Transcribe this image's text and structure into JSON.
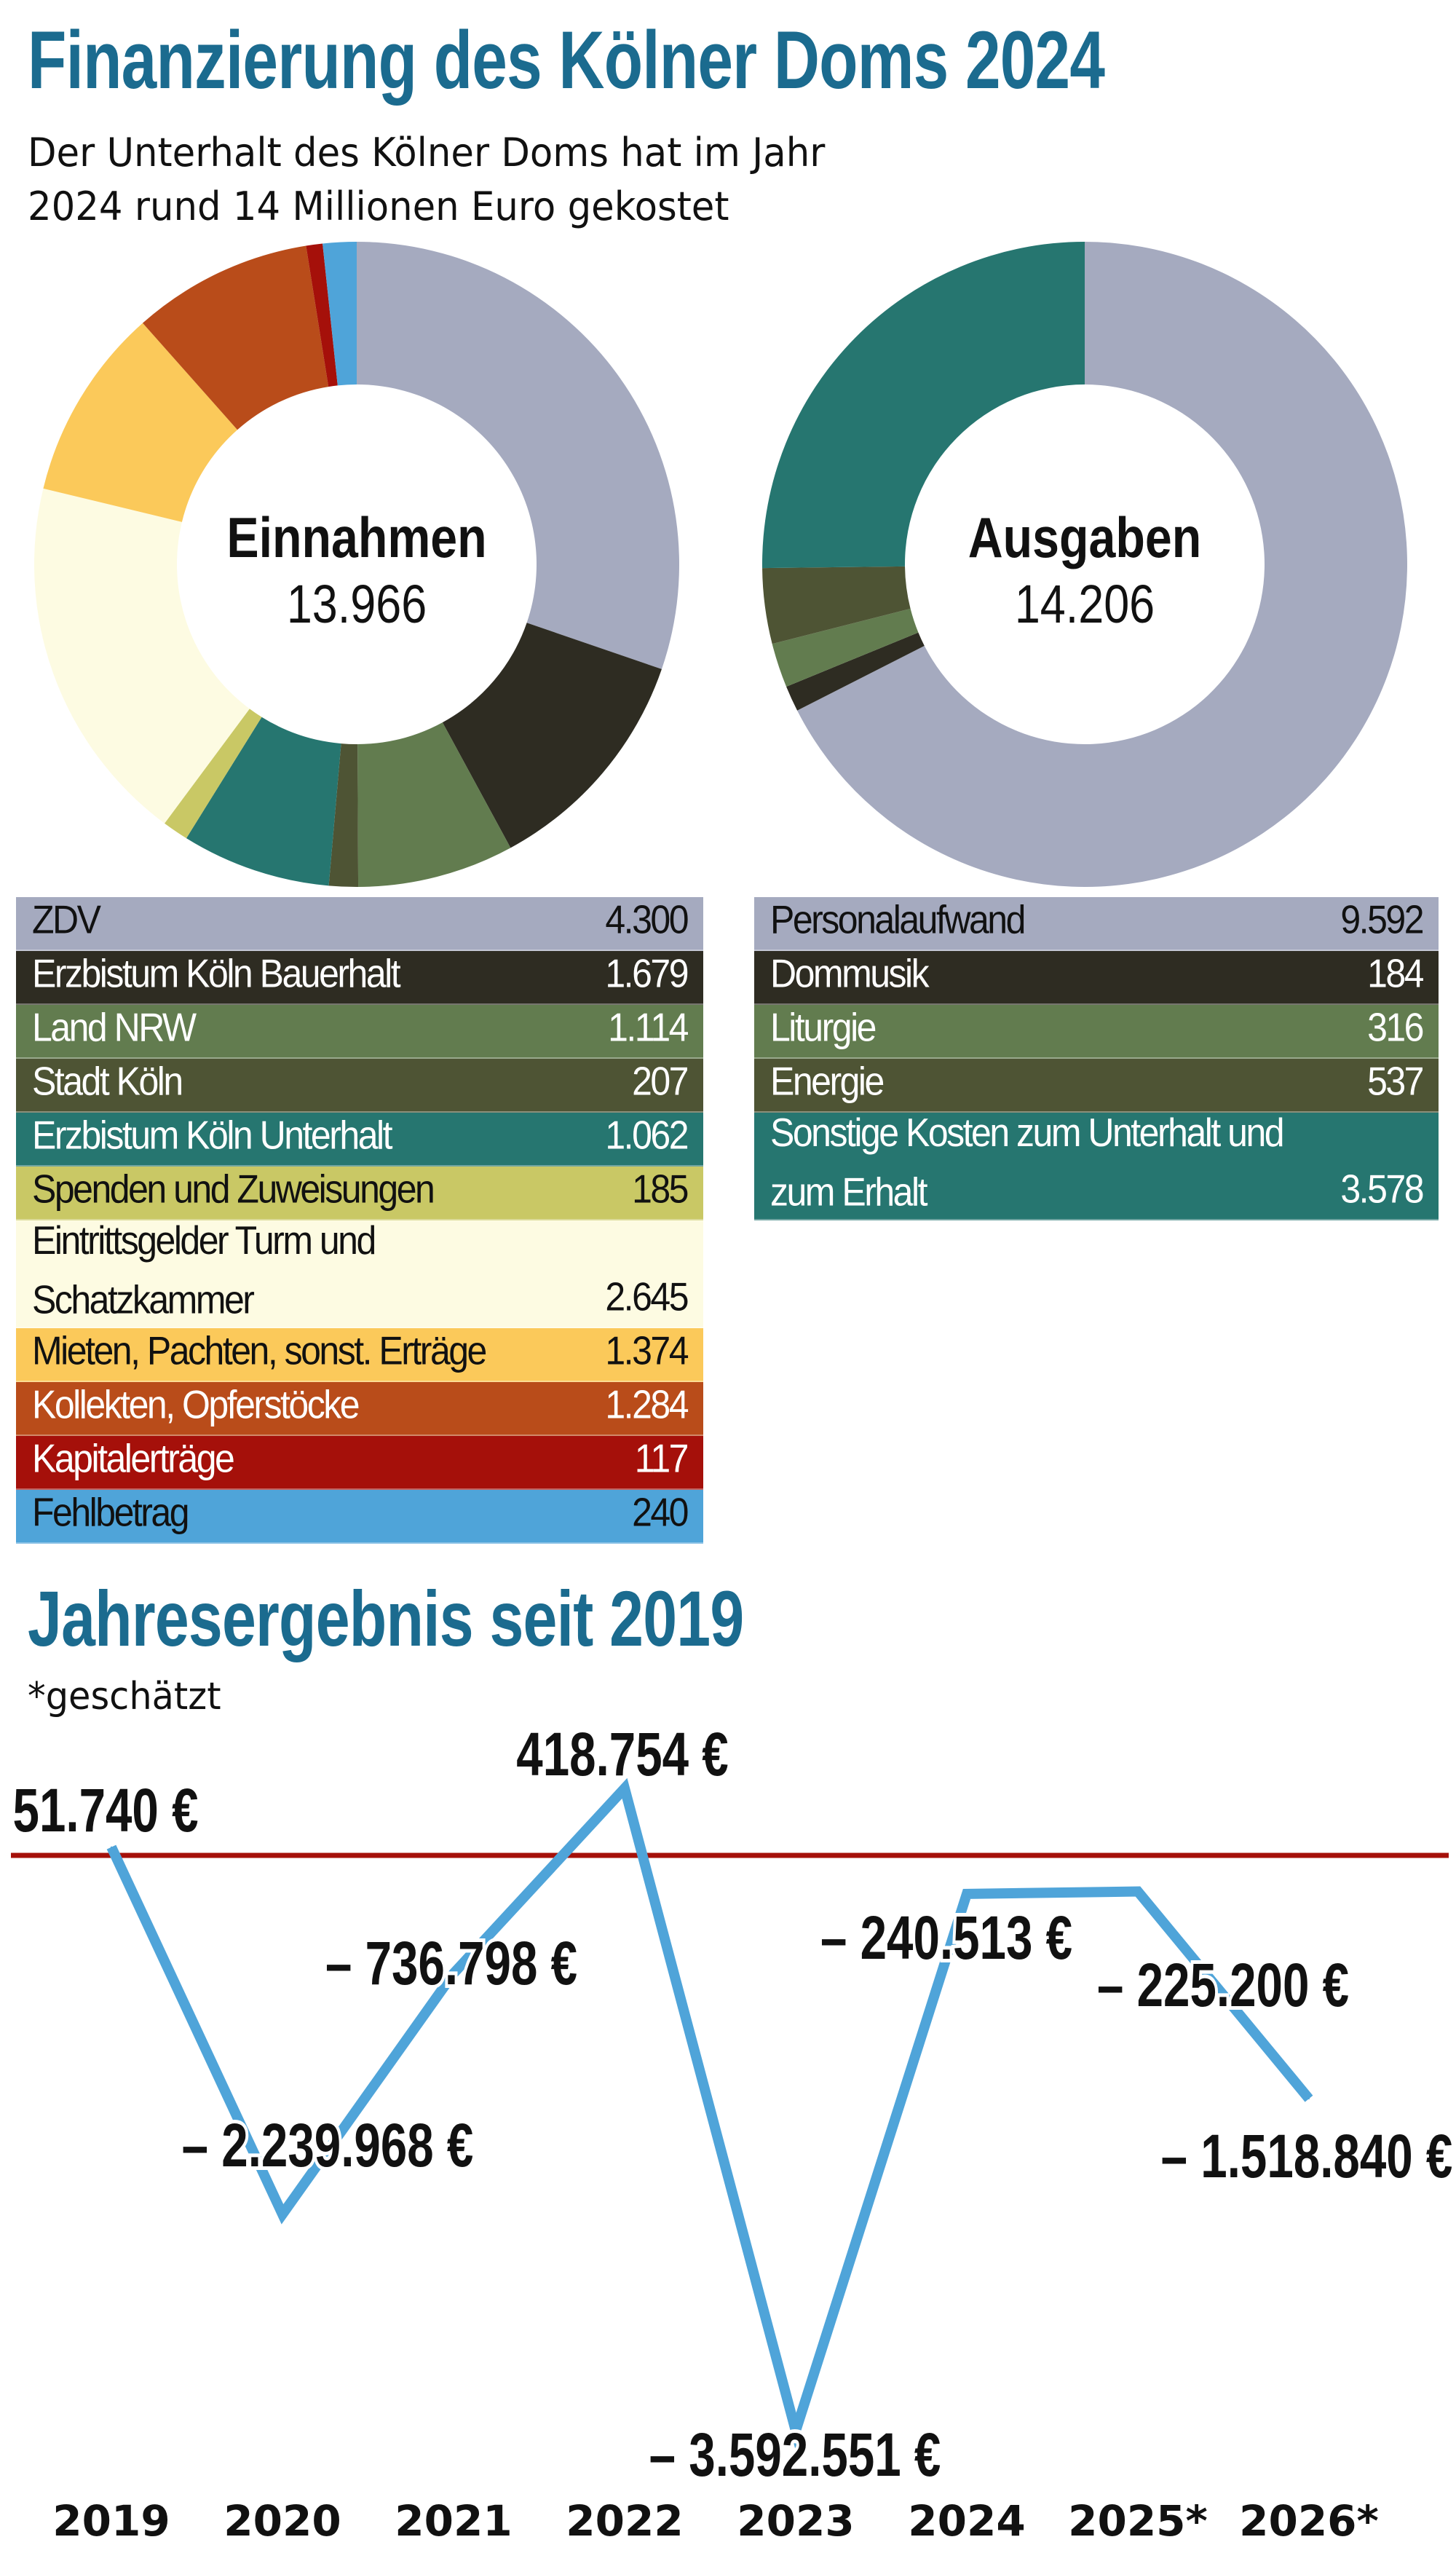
{
  "header": {
    "title": "Finanzierung des Kölner Doms 2024",
    "subtitle_line1": "Der Unterhalt des Kölner Doms hat im Jahr",
    "subtitle_line2": "2024 rund 14 Millionen Euro gekostet"
  },
  "chart_data": [
    {
      "type": "pie",
      "variant": "donut",
      "center_label": "Einnahmen",
      "center_value": "13.966",
      "categories": [
        "ZDV",
        "Erzbistum Köln Bauerhalt",
        "Land NRW",
        "Stadt Köln",
        "Erzbistum Köln Unterhalt",
        "Spenden und Zuweisungen",
        "Eintrittsgelder Turm und Schatzkammer",
        "Mieten, Pachten, sonst. Erträge",
        "Kollekten, Opferstöcke",
        "Kapitalerträge",
        "Fehlbetrag"
      ],
      "values": [
        4300,
        1679,
        1114,
        207,
        1062,
        185,
        2645,
        1374,
        1284,
        117,
        240
      ],
      "value_labels": [
        "4.300",
        "1.679",
        "1.114",
        "207",
        "1.062",
        "185",
        "2.645",
        "1.374",
        "1.284",
        "117",
        "240"
      ],
      "colors": [
        "#a5aabf",
        "#2e2c22",
        "#627c4f",
        "#4e5434",
        "#267670",
        "#c9c865",
        "#fdfbe2",
        "#fbc95a",
        "#b94c1a",
        "#a5100a",
        "#4fa4d9"
      ],
      "text_colors": [
        "#111",
        "#fff",
        "#fff",
        "#fff",
        "#fff",
        "#111",
        "#111",
        "#111",
        "#fff",
        "#fff",
        "#111"
      ]
    },
    {
      "type": "pie",
      "variant": "donut",
      "center_label": "Ausgaben",
      "center_value": "14.206",
      "categories": [
        "Personalaufwand",
        "Dommusik",
        "Liturgie",
        "Energie",
        "Sonstige Kosten zum Unterhalt und zum Erhalt"
      ],
      "values": [
        9592,
        184,
        316,
        537,
        3578
      ],
      "value_labels": [
        "9.592",
        "184",
        "316",
        "537",
        "3.578"
      ],
      "colors": [
        "#a5aabf",
        "#2e2c22",
        "#627c4f",
        "#4e5434",
        "#267670"
      ],
      "text_colors": [
        "#111",
        "#fff",
        "#fff",
        "#fff",
        "#fff"
      ]
    },
    {
      "type": "line",
      "title": "Jahresergebnis seit 2019",
      "note": "*geschätzt",
      "categories": [
        "2019",
        "2020",
        "2021",
        "2022",
        "2023",
        "2024",
        "2025*",
        "2026*"
      ],
      "values": [
        51740,
        -2239968,
        -736798,
        418754,
        -3592551,
        -240513,
        -225200,
        -1518840
      ],
      "value_labels": [
        "51.740 €",
        "– 2.239.968 €",
        "– 736.798 €",
        "418.754 €",
        "– 3.592.551 €",
        "– 240.513 €",
        "– 225.200 €",
        "– 1.518.840 €"
      ],
      "line_color": "#4fa4d9",
      "zero_line_color": "#a5100a",
      "grid": false
    }
  ]
}
